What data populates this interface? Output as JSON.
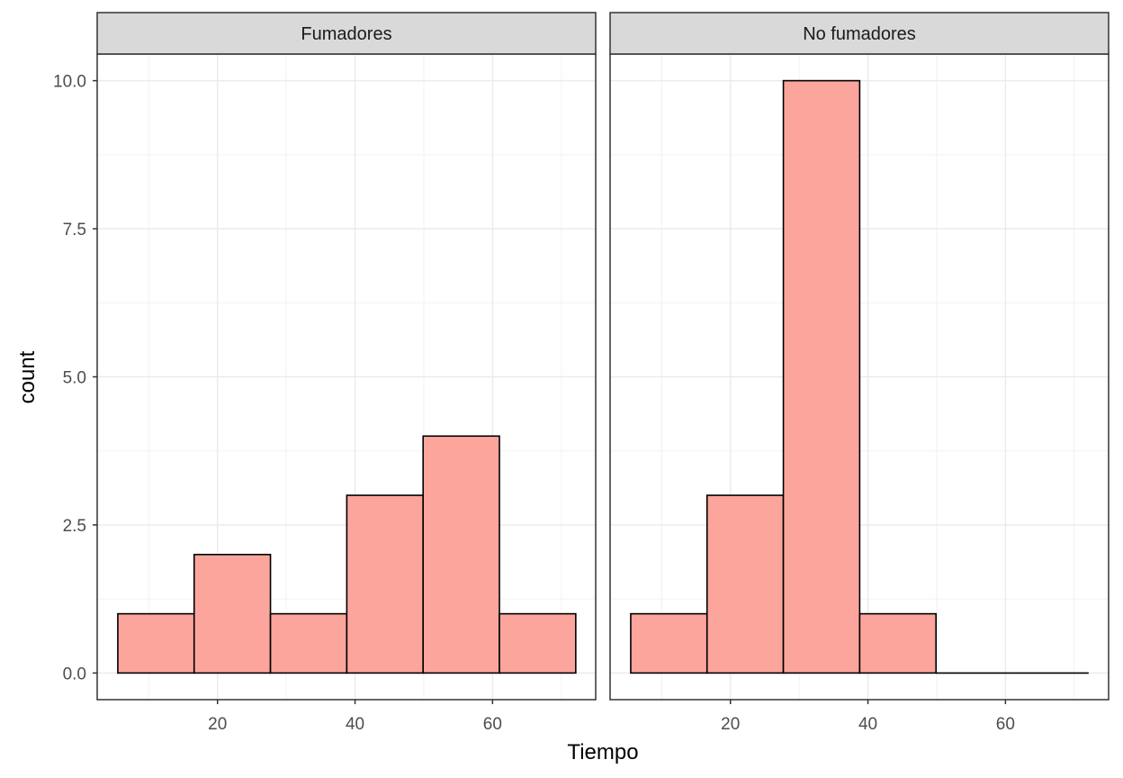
{
  "chart_data": {
    "type": "bar",
    "xlabel": "Tiempo",
    "ylabel": "count",
    "xlim": [
      2.5,
      75.0
    ],
    "ylim": [
      -0.45,
      10.45
    ],
    "x_ticks": [
      20,
      40,
      60
    ],
    "y_ticks": [
      0.0,
      2.5,
      5.0,
      7.5,
      10.0
    ],
    "x_tick_labels": [
      "20",
      "40",
      "60"
    ],
    "y_tick_labels": [
      "0.0",
      "2.5",
      "5.0",
      "7.5",
      "10.0"
    ],
    "bin_edges": [
      5.5,
      16.6,
      27.7,
      38.8,
      49.9,
      61.0,
      72.1
    ],
    "grid": true,
    "fill_color": "#FCA59C",
    "outline_color": "#000000",
    "panels": [
      {
        "label": "Fumadores",
        "counts": [
          1,
          2,
          1,
          3,
          4,
          1
        ]
      },
      {
        "label": "No fumadores",
        "counts": [
          1,
          3,
          10,
          1,
          0,
          0
        ]
      }
    ]
  }
}
